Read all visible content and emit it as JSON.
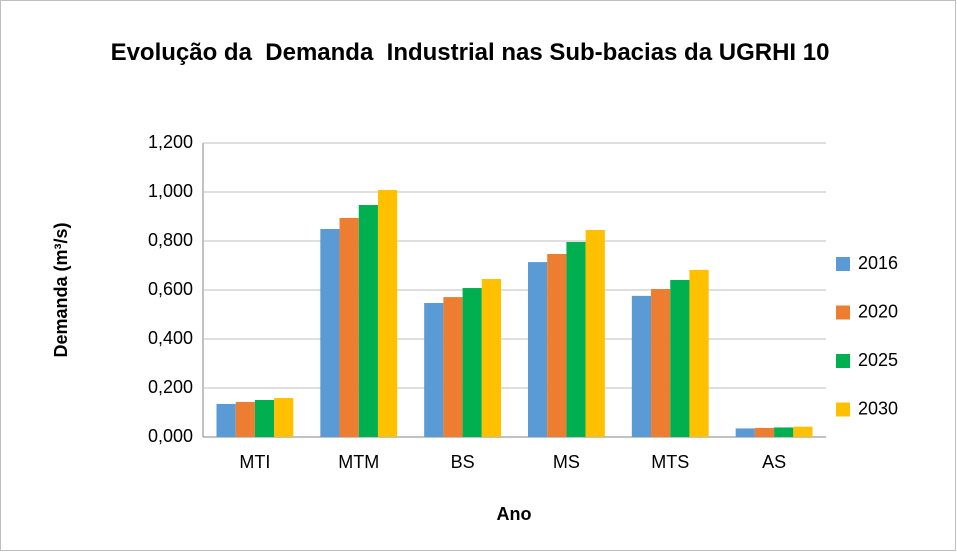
{
  "chart_data": {
    "type": "bar",
    "title": "Evolução da  Demanda  Industrial nas Sub-bacias da UGRHI 10",
    "x_label": "Ano",
    "y_label": "Demanda (m³/s)",
    "categories": [
      "MTI",
      "MTM",
      "BS",
      "MS",
      "MTS",
      "AS"
    ],
    "series": [
      {
        "name": "2016",
        "color": "#5b9bd5",
        "values": [
          0.135,
          0.849,
          0.547,
          0.714,
          0.576,
          0.035
        ]
      },
      {
        "name": "2020",
        "color": "#ed7d31",
        "values": [
          0.143,
          0.894,
          0.571,
          0.747,
          0.604,
          0.037
        ]
      },
      {
        "name": "2025",
        "color": "#00b050",
        "values": [
          0.151,
          0.947,
          0.608,
          0.796,
          0.641,
          0.039
        ]
      },
      {
        "name": "2030",
        "color": "#ffc000",
        "values": [
          0.159,
          1.008,
          0.645,
          0.845,
          0.682,
          0.042
        ]
      }
    ],
    "ylim": [
      0,
      1.2
    ],
    "yticks": [
      {
        "value": 0,
        "label": "0,000"
      },
      {
        "value": 0.2,
        "label": "0,200"
      },
      {
        "value": 0.4,
        "label": "0,400"
      },
      {
        "value": 0.6,
        "label": "0,600"
      },
      {
        "value": 0.8,
        "label": "0,800"
      },
      {
        "value": 1.0,
        "label": "1,000"
      },
      {
        "value": 1.2,
        "label": "1,200"
      }
    ],
    "grid": true,
    "legend": "right"
  }
}
